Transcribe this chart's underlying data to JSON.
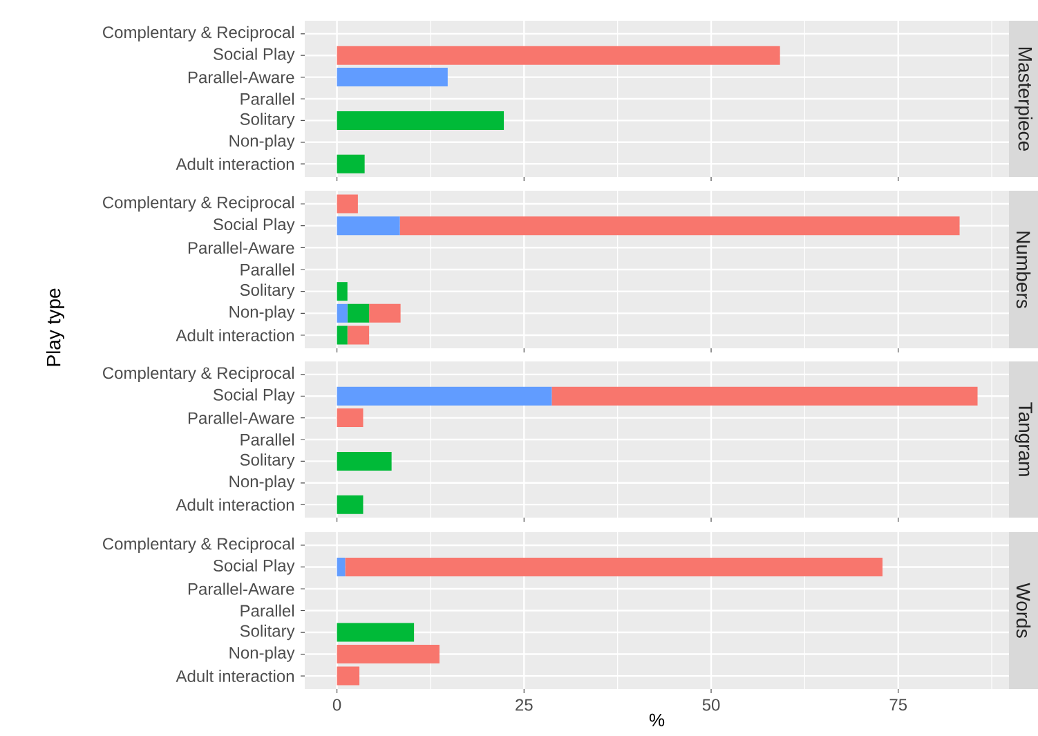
{
  "chart_data": [
    {
      "type": "bar",
      "orientation": "horizontal",
      "stacked": true,
      "title": "Masterpiece",
      "categories": [
        "Complentary & Reciprocal",
        "Social Play",
        "Parallel-Aware",
        "Parallel",
        "Solitary",
        "Non-play",
        "Adult interaction"
      ],
      "series": [
        {
          "color": "#619cff",
          "values": [
            0,
            0,
            14.8,
            0,
            0,
            0,
            0
          ]
        },
        {
          "color": "#00ba38",
          "values": [
            0,
            0,
            0,
            0,
            22.3,
            0,
            3.7
          ]
        },
        {
          "color": "#f8766d",
          "values": [
            0,
            59.2,
            0,
            0,
            0,
            0,
            0
          ]
        }
      ],
      "xlim": [
        -4.3,
        89.8
      ],
      "xticks": [
        0,
        25,
        50,
        75
      ],
      "grid": true,
      "tick_labels": "y"
    },
    {
      "type": "bar",
      "orientation": "horizontal",
      "stacked": true,
      "title": "Numbers",
      "ylabel": "Play type",
      "categories": [
        "Complentary & Reciprocal",
        "Social Play",
        "Parallel-Aware",
        "Parallel",
        "Solitary",
        "Non-play",
        "Adult interaction"
      ],
      "series": [
        {
          "color": "#619cff",
          "values": [
            0,
            8.4,
            0,
            0,
            0,
            1.4,
            0
          ]
        },
        {
          "color": "#00ba38",
          "values": [
            0,
            0,
            0,
            0,
            1.4,
            2.9,
            1.4
          ]
        },
        {
          "color": "#f8766d",
          "values": [
            2.8,
            74.8,
            0,
            0,
            0,
            4.2,
            2.9
          ]
        }
      ],
      "xlim": [
        -4.3,
        89.8
      ],
      "xticks": [
        0,
        25,
        50,
        75
      ],
      "grid": true,
      "tick_labels": "y"
    },
    {
      "type": "bar",
      "orientation": "horizontal",
      "stacked": true,
      "title": "Tangram",
      "categories": [
        "Complentary & Reciprocal",
        "Social Play",
        "Parallel-Aware",
        "Parallel",
        "Solitary",
        "Non-play",
        "Adult interaction"
      ],
      "series": [
        {
          "color": "#619cff",
          "values": [
            0,
            28.7,
            0,
            0,
            0,
            0,
            0
          ]
        },
        {
          "color": "#00ba38",
          "values": [
            0,
            0,
            0,
            0,
            7.3,
            0,
            3.5
          ]
        },
        {
          "color": "#f8766d",
          "values": [
            0,
            56.9,
            3.5,
            0,
            0,
            0,
            0
          ]
        }
      ],
      "xlim": [
        -4.3,
        89.8
      ],
      "xticks": [
        0,
        25,
        50,
        75
      ],
      "grid": true,
      "tick_labels": "y"
    },
    {
      "type": "bar",
      "orientation": "horizontal",
      "stacked": true,
      "title": "Words",
      "xlabel": "%",
      "categories": [
        "Complentary & Reciprocal",
        "Social Play",
        "Parallel-Aware",
        "Parallel",
        "Solitary",
        "Non-play",
        "Adult interaction"
      ],
      "series": [
        {
          "color": "#619cff",
          "values": [
            0,
            1.1,
            0,
            0,
            0,
            0,
            0
          ]
        },
        {
          "color": "#00ba38",
          "values": [
            0,
            0,
            0,
            0,
            10.3,
            0,
            0
          ]
        },
        {
          "color": "#f8766d",
          "values": [
            0,
            71.8,
            0,
            0,
            0,
            13.7,
            3.0
          ]
        }
      ],
      "xlim": [
        -4.3,
        89.8
      ],
      "xticks": [
        0,
        25,
        50,
        75
      ],
      "grid": true
    }
  ]
}
